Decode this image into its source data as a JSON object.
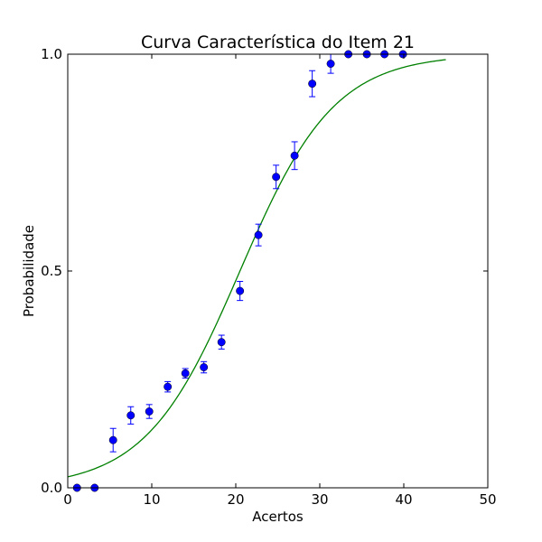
{
  "chart_data": {
    "type": "scatter",
    "title": "Curva Característica do Item 21",
    "xlabel": "Acertos",
    "ylabel": "Probabilidade",
    "xlim": [
      0,
      50
    ],
    "ylim": [
      0.0,
      1.0
    ],
    "xticks": [
      "0",
      "10",
      "20",
      "30",
      "40",
      "50"
    ],
    "yticks": [
      "0.0",
      "0.5",
      "1.0"
    ],
    "grid": false,
    "colors": {
      "points": "#0000ff",
      "curve": "#008000"
    },
    "observed": {
      "x": [
        1.1,
        3.2,
        5.4,
        7.5,
        9.7,
        11.9,
        14.0,
        16.2,
        18.3,
        20.5,
        22.7,
        24.8,
        27.0,
        29.1,
        31.3,
        33.4,
        35.6,
        37.7,
        39.9
      ],
      "y": [
        0.0,
        0.0,
        0.11,
        0.167,
        0.176,
        0.233,
        0.264,
        0.278,
        0.336,
        0.454,
        0.583,
        0.717,
        0.766,
        0.932,
        0.978,
        1.0,
        1.0,
        1.0,
        1.0
      ],
      "err": [
        0.0,
        0.0,
        0.027,
        0.02,
        0.016,
        0.012,
        0.011,
        0.013,
        0.016,
        0.022,
        0.025,
        0.027,
        0.032,
        0.03,
        0.022,
        0.0,
        0.0,
        0.0,
        0.0
      ]
    },
    "fit": {
      "x_range": [
        0,
        45
      ],
      "a": 0.178,
      "b": 20.5
    }
  }
}
